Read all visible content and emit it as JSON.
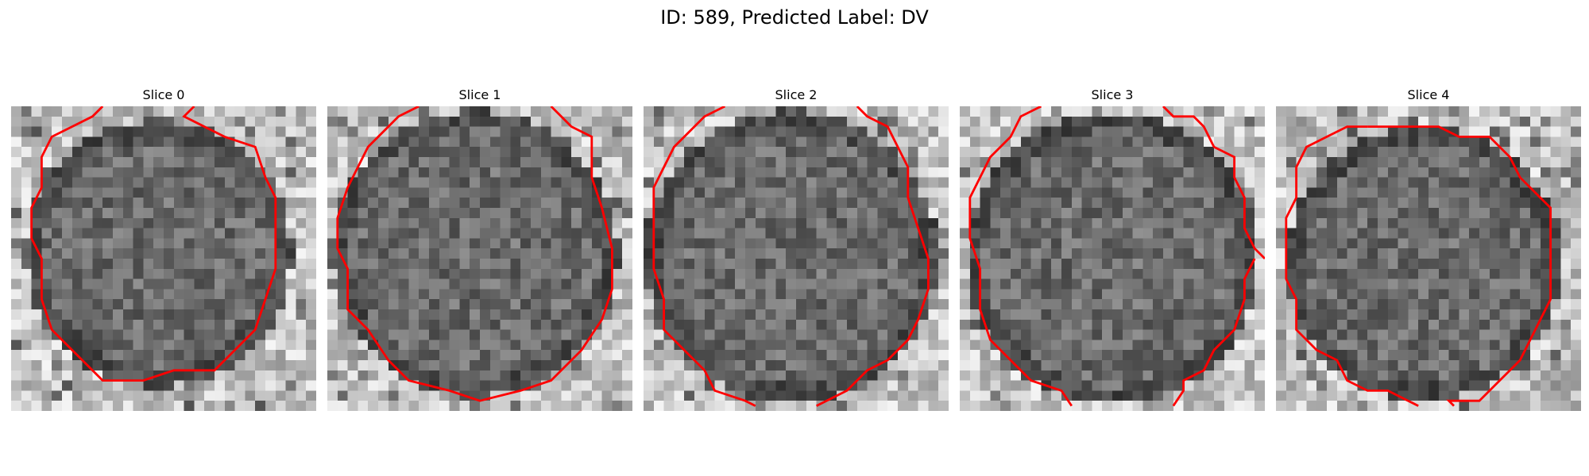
{
  "figure": {
    "title": "ID: 589, Predicted Label: DV"
  },
  "panels": [
    {
      "title": "Slice 0"
    },
    {
      "title": "Slice 1"
    },
    {
      "title": "Slice 2"
    },
    {
      "title": "Slice 3"
    },
    {
      "title": "Slice 4"
    }
  ],
  "colors": {
    "contour": "#ff0000",
    "background": "#ffffff"
  }
}
